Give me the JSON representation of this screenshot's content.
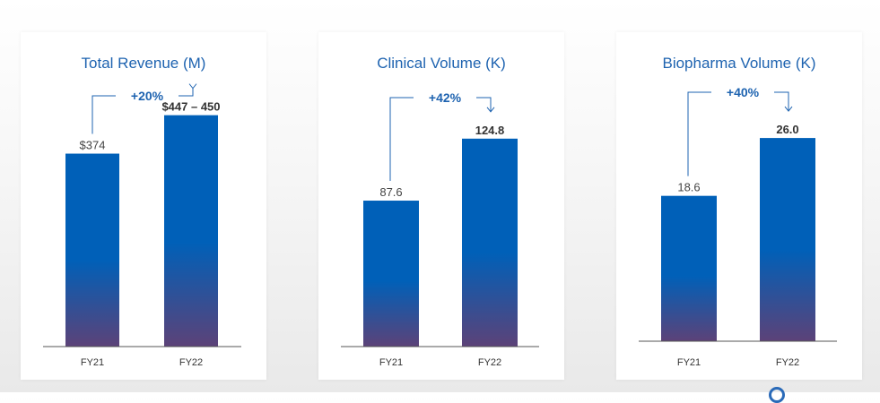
{
  "colors": {
    "title": "#1e63b0",
    "bar_top": "#0060b8",
    "bar_bottom": "#5c4278",
    "axis": "#555555",
    "arrow": "#1e63b0"
  },
  "chart_data": [
    {
      "type": "bar",
      "title": "Total Revenue (M)",
      "categories": [
        "FY21",
        "FY22"
      ],
      "values": [
        374,
        448.5
      ],
      "value_labels": [
        "$374",
        "$447 – 450"
      ],
      "growth_label": "+20%",
      "ylim": [
        0,
        460
      ]
    },
    {
      "type": "bar",
      "title": "Clinical Volume (K)",
      "categories": [
        "FY21",
        "FY22"
      ],
      "values": [
        87.6,
        124.8
      ],
      "value_labels": [
        "87.6",
        "124.8"
      ],
      "growth_label": "+42%",
      "ylim": [
        0,
        129
      ]
    },
    {
      "type": "bar",
      "title": "Biopharma Volume (K)",
      "categories": [
        "FY21",
        "FY22"
      ],
      "values": [
        18.6,
        26.0
      ],
      "value_labels": [
        "18.6",
        "26.0"
      ],
      "growth_label": "+40%",
      "ylim": [
        0,
        27.5
      ]
    }
  ]
}
